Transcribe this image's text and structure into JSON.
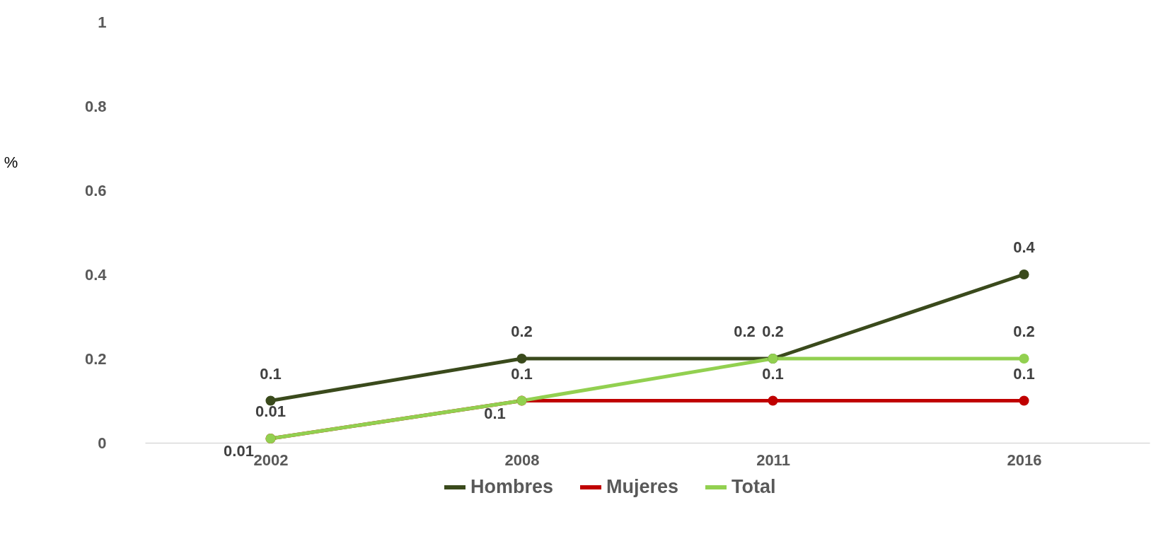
{
  "chart_data": {
    "type": "line",
    "ylabel": "%",
    "categories": [
      "2002",
      "2008",
      "2011",
      "2016"
    ],
    "series": [
      {
        "name": "Hombres",
        "color": "#3a4a1c",
        "values": [
          0.1,
          0.2,
          0.2,
          0.4
        ]
      },
      {
        "name": "Mujeres",
        "color": "#c00000",
        "values": [
          0.01,
          0.1,
          0.1,
          0.1
        ]
      },
      {
        "name": "Total",
        "color": "#92d050",
        "values": [
          0.01,
          0.1,
          0.2,
          0.2
        ]
      }
    ],
    "ylim": [
      0,
      1
    ],
    "yticks": [
      0,
      0.2,
      0.4,
      0.6,
      0.8,
      1
    ],
    "grid": false,
    "legend": "bottom",
    "marker": "circle",
    "line_style": "solid",
    "data_labels": true
  }
}
